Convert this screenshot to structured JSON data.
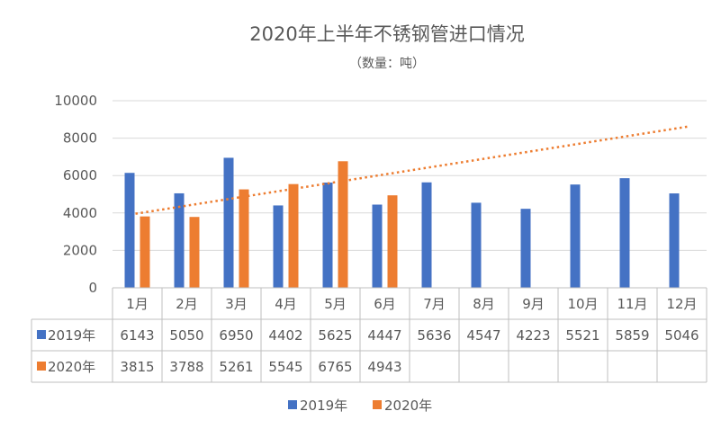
{
  "chart_data": {
    "type": "bar",
    "title": "2020年上半年不锈钢管进口情况",
    "subtitle": "（数量：吨）",
    "categories": [
      "1月",
      "2月",
      "3月",
      "4月",
      "5月",
      "6月",
      "7月",
      "8月",
      "9月",
      "10月",
      "11月",
      "12月"
    ],
    "series": [
      {
        "name": "2019年",
        "color": "#4472C4",
        "values": [
          6143,
          5050,
          6950,
          4402,
          5625,
          4447,
          5636,
          4547,
          4223,
          5521,
          5859,
          5046
        ]
      },
      {
        "name": "2020年",
        "color": "#ED7D31",
        "values": [
          3815,
          3788,
          5261,
          5545,
          6765,
          4943,
          null,
          null,
          null,
          null,
          null,
          null
        ]
      }
    ],
    "trendline": {
      "series": "2020年",
      "type": "linear",
      "style": "dotted",
      "color": "#ED7D31"
    },
    "yticks": [
      "0",
      "2000",
      "4000",
      "6000",
      "8000",
      "10000"
    ],
    "ylim": [
      0,
      10000
    ],
    "legend_position": "bottom",
    "data_table": true
  }
}
